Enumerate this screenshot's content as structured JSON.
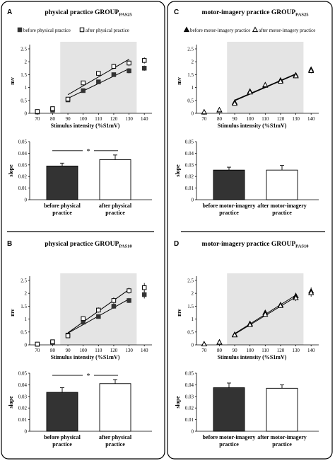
{
  "panels": [
    {
      "letter": "A",
      "title_main": "physical practice GROUP",
      "title_sub": "PAS25",
      "legend": [
        "before physical practice",
        "after physical practice"
      ],
      "bar_xlabels": [
        [
          "before physical",
          "practice"
        ],
        [
          "after physical",
          "practice"
        ]
      ],
      "significance": "*"
    },
    {
      "letter": "C",
      "title_main": "motor-imagery practice GROUP",
      "title_sub": "PAS25",
      "legend": [
        "before motor-imagery practice",
        "after motor-imagery practice"
      ],
      "bar_xlabels": [
        [
          "before motor-imagery",
          "practice"
        ],
        [
          "after motor-imagery",
          "practice"
        ]
      ],
      "significance": ""
    },
    {
      "letter": "B",
      "title_main": "physical practice GROUP",
      "title_sub": "PAS10",
      "legend": [],
      "bar_xlabels": [
        [
          "before physical",
          "practice"
        ],
        [
          "after physical",
          "practice"
        ]
      ],
      "significance": "*"
    },
    {
      "letter": "D",
      "title_main": "motor-imagery practice GROUP",
      "title_sub": "PAS10",
      "legend": [],
      "bar_xlabels": [
        [
          "before motor-imagery",
          "practice"
        ],
        [
          "after motor-imagery",
          "practice"
        ]
      ],
      "significance": ""
    }
  ],
  "colors": {
    "dark": "#333333",
    "shade": "#e4e4e4",
    "frame": "#000000"
  },
  "chart_data": [
    {
      "panel": "A",
      "type": "scatter",
      "xlabel": "Stimulus intensity (%S1mV)",
      "ylabel": "mv",
      "x": [
        70,
        80,
        90,
        100,
        110,
        120,
        130,
        140
      ],
      "xlim": [
        65,
        145
      ],
      "ylim": [
        0,
        2.5
      ],
      "yticks": [
        "0",
        "0.5",
        "1",
        "1.5",
        "2",
        "2.5"
      ],
      "shaded_range": [
        85,
        135
      ],
      "fit_range": [
        90,
        130
      ],
      "series": [
        {
          "name": "before physical practice",
          "marker": "square-filled",
          "values": [
            0.05,
            0.12,
            0.52,
            0.88,
            1.22,
            1.5,
            1.65,
            1.75
          ],
          "errors": [
            0.02,
            0.03,
            0.05,
            0.06,
            0.07,
            0.08,
            0.1,
            0.1
          ]
        },
        {
          "name": "after physical practice",
          "marker": "square-open",
          "values": [
            0.07,
            0.18,
            0.55,
            1.18,
            1.55,
            1.82,
            1.95,
            2.05
          ],
          "errors": [
            0.03,
            0.04,
            0.06,
            0.08,
            0.09,
            0.1,
            0.12,
            0.12
          ]
        }
      ]
    },
    {
      "panel": "A",
      "type": "bar",
      "ylabel": "slope",
      "ylim": [
        0,
        0.05
      ],
      "yticks": [
        "0",
        "0.01",
        "0.02",
        "0.03",
        "0.04",
        "0.05"
      ],
      "values": [
        0.029,
        0.0345
      ],
      "errors": [
        0.0025,
        0.004
      ]
    },
    {
      "panel": "C",
      "type": "scatter",
      "xlabel": "Stimulus intensity (%S1mV)",
      "ylabel": "mv",
      "x": [
        70,
        80,
        90,
        100,
        110,
        120,
        130,
        140
      ],
      "xlim": [
        65,
        145
      ],
      "ylim": [
        0,
        2.5
      ],
      "yticks": [
        "0",
        "0.5",
        "1",
        "1.5",
        "2",
        "2.5"
      ],
      "shaded_range": [
        85,
        135
      ],
      "fit_range": [
        90,
        130
      ],
      "series": [
        {
          "name": "before motor-imagery practice",
          "marker": "triangle-filled",
          "values": [
            0.04,
            0.12,
            0.42,
            0.85,
            1.08,
            1.28,
            1.48,
            1.7
          ],
          "errors": [
            0.02,
            0.03,
            0.05,
            0.06,
            0.07,
            0.08,
            0.09,
            0.1
          ]
        },
        {
          "name": "after motor-imagery practice",
          "marker": "triangle-open",
          "values": [
            0.05,
            0.13,
            0.38,
            0.82,
            1.1,
            1.24,
            1.45,
            1.65
          ],
          "errors": [
            0.02,
            0.03,
            0.05,
            0.06,
            0.07,
            0.08,
            0.09,
            0.1
          ]
        }
      ]
    },
    {
      "panel": "C",
      "type": "bar",
      "ylabel": "slope",
      "ylim": [
        0,
        0.05
      ],
      "yticks": [
        "0",
        "0.01",
        "0.02",
        "0.03",
        "0.04",
        "0.05"
      ],
      "values": [
        0.0255,
        0.0255
      ],
      "errors": [
        0.0025,
        0.004
      ]
    },
    {
      "panel": "B",
      "type": "scatter",
      "xlabel": "Stimulus intensity (%S1mV)",
      "ylabel": "mv",
      "x": [
        70,
        80,
        90,
        100,
        110,
        120,
        130,
        140
      ],
      "xlim": [
        65,
        145
      ],
      "ylim": [
        0,
        2.5
      ],
      "yticks": [
        "0",
        "0.5",
        "1",
        "1.5",
        "2",
        "2.5"
      ],
      "shaded_range": [
        85,
        135
      ],
      "fit_range": [
        90,
        130
      ],
      "series": [
        {
          "name": "before physical practice",
          "marker": "square-filled",
          "values": [
            0.02,
            0.08,
            0.38,
            0.88,
            1.1,
            1.5,
            1.72,
            1.95
          ],
          "errors": [
            0.02,
            0.03,
            0.06,
            0.07,
            0.08,
            0.1,
            0.1,
            0.15
          ]
        },
        {
          "name": "after physical practice",
          "marker": "square-open",
          "values": [
            0.03,
            0.12,
            0.35,
            1.02,
            1.35,
            1.72,
            2.1,
            2.22
          ],
          "errors": [
            0.02,
            0.04,
            0.06,
            0.08,
            0.1,
            0.12,
            0.12,
            0.18
          ]
        }
      ]
    },
    {
      "panel": "B",
      "type": "bar",
      "ylabel": "slope",
      "ylim": [
        0,
        0.05
      ],
      "yticks": [
        "0",
        "0.01",
        "0.02",
        "0.03",
        "0.04",
        "0.05"
      ],
      "values": [
        0.0335,
        0.041
      ],
      "errors": [
        0.004,
        0.0035
      ]
    },
    {
      "panel": "D",
      "type": "scatter",
      "xlabel": "Stimulus intensity (%S1mV)",
      "ylabel": "mv",
      "x": [
        70,
        80,
        90,
        100,
        110,
        120,
        130,
        140
      ],
      "xlim": [
        65,
        145
      ],
      "ylim": [
        0,
        2.5
      ],
      "yticks": [
        "0",
        "0.5",
        "1",
        "1.5",
        "2",
        "2.5"
      ],
      "shaded_range": [
        85,
        135
      ],
      "fit_range": [
        90,
        130
      ],
      "series": [
        {
          "name": "before motor-imagery practice",
          "marker": "triangle-filled",
          "values": [
            0.03,
            0.1,
            0.4,
            0.82,
            1.25,
            1.55,
            1.9,
            2.08
          ],
          "errors": [
            0.02,
            0.03,
            0.05,
            0.07,
            0.08,
            0.09,
            0.12,
            0.15
          ]
        },
        {
          "name": "after motor-imagery practice",
          "marker": "triangle-open",
          "values": [
            0.03,
            0.1,
            0.38,
            0.78,
            1.18,
            1.52,
            1.82,
            2.02
          ],
          "errors": [
            0.02,
            0.03,
            0.05,
            0.07,
            0.08,
            0.09,
            0.12,
            0.15
          ]
        }
      ]
    },
    {
      "panel": "D",
      "type": "bar",
      "ylabel": "slope",
      "ylim": [
        0,
        0.05
      ],
      "yticks": [
        "0",
        "0.01",
        "0.02",
        "0.03",
        "0.04",
        "0.05"
      ],
      "values": [
        0.0375,
        0.037
      ],
      "errors": [
        0.004,
        0.003
      ]
    }
  ]
}
